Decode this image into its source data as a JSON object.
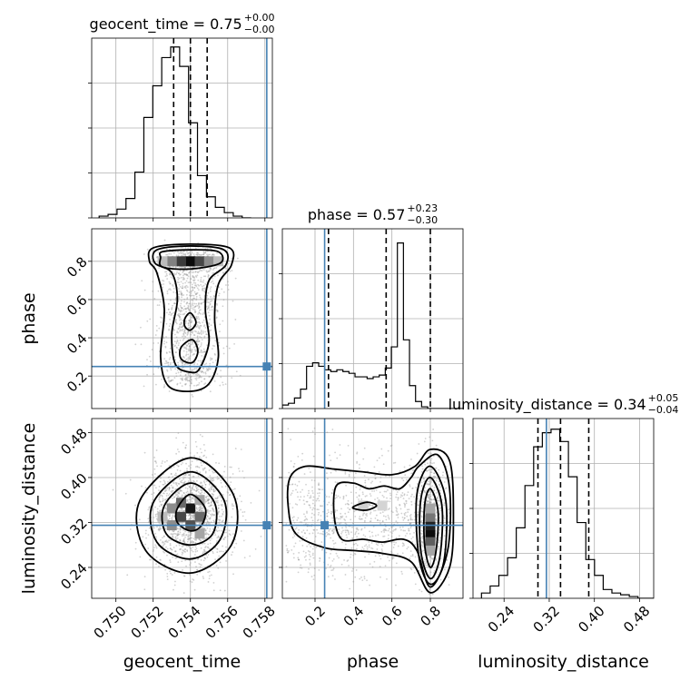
{
  "chart_data": {
    "type": "corner",
    "parameters": [
      "geocent_time",
      "phase",
      "luminosity_distance"
    ],
    "axis_labels": [
      "geocent_time",
      "phase",
      "luminosity_distance"
    ],
    "titles": [
      {
        "main": "geocent_time = 0.75",
        "sup": "+0.00",
        "sub": "−0.00"
      },
      {
        "main": "phase = 0.57",
        "sup": "+0.23",
        "sub": "−0.30"
      },
      {
        "main": "luminosity_distance = 0.34",
        "sup": "+0.05",
        "sub": "−0.04"
      }
    ],
    "ranges": [
      [
        0.7487,
        0.7584
      ],
      [
        0.03,
        0.97
      ],
      [
        0.185,
        0.505
      ]
    ],
    "ticks": [
      {
        "values": [
          0.75,
          0.752,
          0.754,
          0.756,
          0.758
        ],
        "labels": [
          "0.750",
          "0.752",
          "0.754",
          "0.756",
          "0.758"
        ]
      },
      {
        "values": [
          0.2,
          0.4,
          0.6,
          0.8
        ],
        "labels": [
          "0.2",
          "0.4",
          "0.6",
          "0.8"
        ]
      },
      {
        "values": [
          0.24,
          0.32,
          0.4,
          0.48
        ],
        "labels": [
          "0.24",
          "0.32",
          "0.40",
          "0.48"
        ]
      }
    ],
    "truths": [
      0.7581,
      0.25,
      0.315
    ],
    "quantiles": [
      [
        0.7531,
        0.754,
        0.7549
      ],
      [
        0.27,
        0.57,
        0.8
      ],
      [
        0.3,
        0.34,
        0.39
      ]
    ],
    "histograms": [
      {
        "parameter": "geocent_time",
        "bin_edges_start": 0.7491,
        "bin_width": 0.00048,
        "counts": [
          0.01,
          0.02,
          0.05,
          0.11,
          0.26,
          0.57,
          0.75,
          0.91,
          0.97,
          0.86,
          0.54,
          0.24,
          0.12,
          0.06,
          0.03,
          0.01,
          0.0
        ]
      },
      {
        "parameter": "phase",
        "bin_edges_start": 0.03,
        "bin_width": 0.0315,
        "counts": [
          0.02,
          0.03,
          0.06,
          0.11,
          0.24,
          0.26,
          0.24,
          0.22,
          0.21,
          0.22,
          0.21,
          0.2,
          0.18,
          0.18,
          0.17,
          0.18,
          0.19,
          0.23,
          0.35,
          0.94,
          0.39,
          0.13,
          0.04,
          0.01,
          0.0,
          0.0,
          0.0,
          0.0,
          0.0,
          0.0
        ]
      },
      {
        "parameter": "luminosity_distance",
        "bin_edges_start": 0.2,
        "bin_width": 0.0154,
        "counts": [
          0.03,
          0.07,
          0.13,
          0.23,
          0.4,
          0.64,
          0.86,
          0.94,
          0.96,
          0.89,
          0.69,
          0.43,
          0.22,
          0.13,
          0.05,
          0.03,
          0.02,
          0.01,
          0.0,
          0.0
        ]
      }
    ],
    "contour_panels": [
      {
        "x": "geocent_time",
        "y": "phase",
        "contours": [
          [
            [
              0.7525,
              0.85
            ],
            [
              0.754,
              0.86
            ],
            [
              0.7555,
              0.85
            ],
            [
              0.7556,
              0.79
            ],
            [
              0.754,
              0.76
            ],
            [
              0.7525,
              0.77
            ],
            [
              0.7524,
              0.82
            ]
          ],
          [
            [
              0.7522,
              0.86
            ],
            [
              0.754,
              0.88
            ],
            [
              0.7558,
              0.86
            ],
            [
              0.7559,
              0.78
            ],
            [
              0.755,
              0.7
            ],
            [
              0.7548,
              0.55
            ],
            [
              0.755,
              0.38
            ],
            [
              0.7545,
              0.24
            ],
            [
              0.754,
              0.22
            ],
            [
              0.7532,
              0.26
            ],
            [
              0.753,
              0.42
            ],
            [
              0.7533,
              0.6
            ],
            [
              0.753,
              0.74
            ],
            [
              0.7521,
              0.79
            ]
          ],
          [
            [
              0.752,
              0.87
            ],
            [
              0.754,
              0.89
            ],
            [
              0.7561,
              0.87
            ],
            [
              0.7562,
              0.78
            ],
            [
              0.7555,
              0.68
            ],
            [
              0.7553,
              0.5
            ],
            [
              0.7555,
              0.3
            ],
            [
              0.755,
              0.16
            ],
            [
              0.754,
              0.12
            ],
            [
              0.7528,
              0.15
            ],
            [
              0.7524,
              0.3
            ],
            [
              0.7526,
              0.55
            ],
            [
              0.7522,
              0.74
            ],
            [
              0.7518,
              0.8
            ]
          ],
          [
            [
              0.7537,
              0.5
            ],
            [
              0.754,
              0.53
            ],
            [
              0.7543,
              0.48
            ],
            [
              0.754,
              0.44
            ],
            [
              0.7537,
              0.46
            ]
          ],
          [
            [
              0.7535,
              0.35
            ],
            [
              0.7541,
              0.39
            ],
            [
              0.7544,
              0.33
            ],
            [
              0.7541,
              0.27
            ],
            [
              0.7535,
              0.29
            ]
          ]
        ]
      },
      {
        "x": "geocent_time",
        "y": "luminosity_distance",
        "contours": [
          [
            [
              0.7533,
              0.345
            ],
            [
              0.754,
              0.37
            ],
            [
              0.7548,
              0.345
            ],
            [
              0.7546,
              0.315
            ],
            [
              0.754,
              0.305
            ],
            [
              0.7533,
              0.32
            ]
          ],
          [
            [
              0.7526,
              0.35
            ],
            [
              0.754,
              0.39
            ],
            [
              0.7553,
              0.355
            ],
            [
              0.7552,
              0.3
            ],
            [
              0.754,
              0.28
            ],
            [
              0.7527,
              0.3
            ]
          ],
          [
            [
              0.752,
              0.355
            ],
            [
              0.754,
              0.41
            ],
            [
              0.7558,
              0.36
            ],
            [
              0.7556,
              0.29
            ],
            [
              0.754,
              0.255
            ],
            [
              0.7522,
              0.285
            ]
          ],
          [
            [
              0.7513,
              0.36
            ],
            [
              0.754,
              0.435
            ],
            [
              0.7563,
              0.37
            ],
            [
              0.7562,
              0.28
            ],
            [
              0.754,
              0.23
            ],
            [
              0.7516,
              0.27
            ]
          ]
        ]
      },
      {
        "x": "phase",
        "y": "luminosity_distance",
        "contours": [
          [
            [
              0.77,
              0.35
            ],
            [
              0.8,
              0.38
            ],
            [
              0.84,
              0.34
            ],
            [
              0.83,
              0.27
            ],
            [
              0.8,
              0.24
            ],
            [
              0.77,
              0.28
            ]
          ],
          [
            [
              0.75,
              0.36
            ],
            [
              0.8,
              0.4
            ],
            [
              0.86,
              0.35
            ],
            [
              0.85,
              0.26
            ],
            [
              0.8,
              0.22
            ],
            [
              0.75,
              0.27
            ]
          ],
          [
            [
              0.73,
              0.37
            ],
            [
              0.8,
              0.42
            ],
            [
              0.88,
              0.36
            ],
            [
              0.87,
              0.25
            ],
            [
              0.8,
              0.21
            ],
            [
              0.74,
              0.26
            ]
          ],
          [
            [
              0.31,
              0.385
            ],
            [
              0.4,
              0.39
            ],
            [
              0.48,
              0.38
            ],
            [
              0.56,
              0.385
            ],
            [
              0.64,
              0.38
            ],
            [
              0.7,
              0.4
            ],
            [
              0.74,
              0.42
            ],
            [
              0.84,
              0.44
            ],
            [
              0.9,
              0.38
            ],
            [
              0.89,
              0.27
            ],
            [
              0.8,
              0.205
            ],
            [
              0.73,
              0.27
            ],
            [
              0.66,
              0.29
            ],
            [
              0.55,
              0.285
            ],
            [
              0.45,
              0.29
            ],
            [
              0.34,
              0.29
            ],
            [
              0.3,
              0.33
            ]
          ],
          [
            [
              0.07,
              0.4
            ],
            [
              0.15,
              0.42
            ],
            [
              0.3,
              0.415
            ],
            [
              0.45,
              0.41
            ],
            [
              0.6,
              0.405
            ],
            [
              0.72,
              0.42
            ],
            [
              0.8,
              0.45
            ],
            [
              0.9,
              0.43
            ],
            [
              0.92,
              0.33
            ],
            [
              0.9,
              0.24
            ],
            [
              0.8,
              0.195
            ],
            [
              0.7,
              0.25
            ],
            [
              0.55,
              0.265
            ],
            [
              0.4,
              0.27
            ],
            [
              0.25,
              0.275
            ],
            [
              0.1,
              0.3
            ],
            [
              0.06,
              0.35
            ]
          ],
          [
            [
              0.4,
              0.348
            ],
            [
              0.47,
              0.356
            ],
            [
              0.52,
              0.35
            ],
            [
              0.47,
              0.342
            ],
            [
              0.41,
              0.344
            ]
          ]
        ]
      }
    ],
    "density_blocks": [
      {
        "x": "geocent_time",
        "y": "phase",
        "cells": [
          [
            0.754,
            0.8,
            0.95
          ],
          [
            0.7535,
            0.8,
            0.75
          ],
          [
            0.7545,
            0.8,
            0.7
          ],
          [
            0.753,
            0.8,
            0.45
          ],
          [
            0.755,
            0.8,
            0.4
          ],
          [
            0.7525,
            0.8,
            0.2
          ],
          [
            0.7555,
            0.8,
            0.2
          ]
        ]
      },
      {
        "x": "geocent_time",
        "y": "luminosity_distance",
        "cells": [
          [
            0.754,
            0.345,
            0.9
          ],
          [
            0.7535,
            0.33,
            0.7
          ],
          [
            0.754,
            0.315,
            0.65
          ],
          [
            0.7535,
            0.355,
            0.55
          ],
          [
            0.7545,
            0.33,
            0.55
          ],
          [
            0.753,
            0.345,
            0.4
          ],
          [
            0.753,
            0.315,
            0.4
          ],
          [
            0.7545,
            0.36,
            0.3
          ],
          [
            0.7545,
            0.3,
            0.3
          ],
          [
            0.7525,
            0.33,
            0.2
          ]
        ]
      },
      {
        "x": "phase",
        "y": "luminosity_distance",
        "cells": [
          [
            0.8,
            0.3,
            0.95
          ],
          [
            0.8,
            0.315,
            0.85
          ],
          [
            0.8,
            0.285,
            0.6
          ],
          [
            0.8,
            0.33,
            0.5
          ],
          [
            0.8,
            0.27,
            0.3
          ],
          [
            0.8,
            0.345,
            0.3
          ],
          [
            0.45,
            0.35,
            0.12
          ],
          [
            0.55,
            0.35,
            0.1
          ]
        ]
      }
    ]
  }
}
